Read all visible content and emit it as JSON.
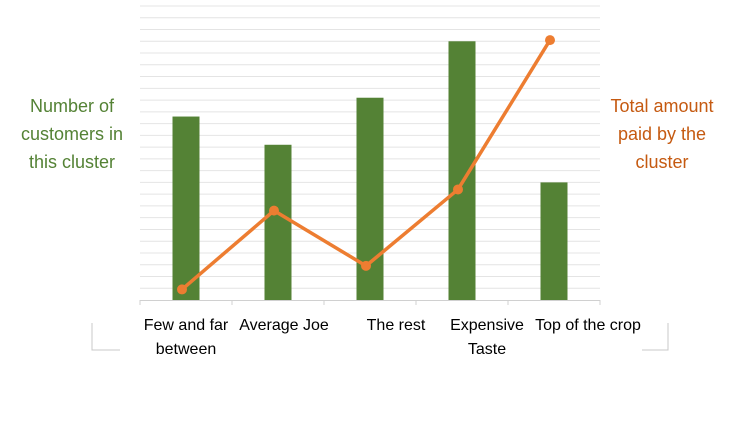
{
  "chart_data": {
    "type": "bar",
    "title": "",
    "categories": [
      "Few and far between",
      "Average Joe",
      "The rest",
      "Expensive Taste",
      "Top of the crop"
    ],
    "series": [
      {
        "name": "Number of customers in this cluster",
        "type": "bar",
        "axis": "left",
        "color": "#548235",
        "values": [
          7.8,
          6.6,
          8.6,
          11.0,
          5.0
        ]
      },
      {
        "name": "Total amount paid by the cluster",
        "type": "line",
        "axis": "right",
        "color": "#ed7d31",
        "values": [
          0.9,
          7.6,
          2.9,
          9.4,
          22.1
        ]
      }
    ],
    "ylim_left": [
      0,
      12.5
    ],
    "ylim_right": [
      0,
      25
    ],
    "ylabel": "Number of customers in this cluster",
    "y2label": "Total amount paid by the cluster",
    "grid": true,
    "legend": "none"
  }
}
